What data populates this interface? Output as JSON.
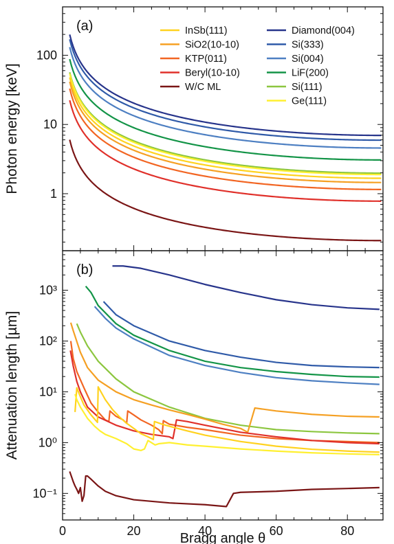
{
  "chart_data": {
    "type": "line",
    "xlabel": "Bragg angle θ",
    "xlim": [
      0,
      90
    ],
    "xticks": [
      "0",
      "20",
      "40",
      "60",
      "80"
    ],
    "legend_placement": "top-right, two columns",
    "legend": [
      {
        "name": "InSb(111)",
        "color": "#ffd21e"
      },
      {
        "name": "SiO2(10-10)",
        "color": "#f5a023"
      },
      {
        "name": "KTP(011)",
        "color": "#f26522"
      },
      {
        "name": "Beryl(10-10)",
        "color": "#e0302a"
      },
      {
        "name": "W/C ML",
        "color": "#7a1515"
      },
      {
        "name": "Diamond(004)",
        "color": "#27348b"
      },
      {
        "name": "Si(333)",
        "color": "#2f5aa8"
      },
      {
        "name": "Si(004)",
        "color": "#4d7fc2"
      },
      {
        "name": "LiF(200)",
        "color": "#139447"
      },
      {
        "name": "Si(111)",
        "color": "#8cc63f"
      },
      {
        "name": "Ge(111)",
        "color": "#fff030"
      }
    ],
    "panels": [
      {
        "label": "(a)",
        "ylabel": "Photon energy [keV]",
        "yscale": "log",
        "ylim": [
          0.15,
          500
        ],
        "ytick_labels": [
          "1",
          "10",
          "100"
        ],
        "series": [
          {
            "name": "Diamond(004)",
            "color": "#27348b",
            "theta_min": 2.0,
            "e_at_90deg": 6.95
          },
          {
            "name": "Si(333)",
            "color": "#2f5aa8",
            "theta_min": 2.0,
            "e_at_90deg": 5.93
          },
          {
            "name": "Si(004)",
            "color": "#4d7fc2",
            "theta_min": 2.0,
            "e_at_90deg": 4.57
          },
          {
            "name": "LiF(200)",
            "color": "#139447",
            "theta_min": 2.0,
            "e_at_90deg": 3.07
          },
          {
            "name": "Si(111)",
            "color": "#8cc63f",
            "theta_min": 2.0,
            "e_at_90deg": 1.98
          },
          {
            "name": "Ge(111)",
            "color": "#fff030",
            "theta_min": 2.0,
            "e_at_90deg": 1.89
          },
          {
            "name": "InSb(111)",
            "color": "#ffd21e",
            "theta_min": 2.0,
            "e_at_90deg": 1.67
          },
          {
            "name": "SiO2(10-10)",
            "color": "#f5a023",
            "theta_min": 2.0,
            "e_at_90deg": 1.45
          },
          {
            "name": "KTP(011)",
            "color": "#f26522",
            "theta_min": 2.0,
            "e_at_90deg": 1.15
          },
          {
            "name": "Beryl(10-10)",
            "color": "#e0302a",
            "theta_min": 2.0,
            "e_at_90deg": 0.78
          },
          {
            "name": "W/C ML",
            "color": "#7a1515",
            "theta_min": 2.0,
            "e_at_90deg": 0.21
          }
        ]
      },
      {
        "label": "(b)",
        "ylabel": "Attenuation length [µm]",
        "yscale": "log",
        "ylim": [
          0.03,
          6000
        ],
        "ytick_labels": [
          "10⁻¹",
          "10⁰",
          "10¹",
          "10²",
          "10³"
        ],
        "series": [
          {
            "name": "Diamond(004)",
            "color": "#27348b",
            "points": [
              [
                14,
                3000
              ],
              [
                17,
                3000
              ],
              [
                22,
                2700
              ],
              [
                30,
                2000
              ],
              [
                40,
                1300
              ],
              [
                50,
                900
              ],
              [
                60,
                650
              ],
              [
                70,
                520
              ],
              [
                80,
                450
              ],
              [
                89,
                420
              ]
            ]
          },
          {
            "name": "Si(333)",
            "color": "#2f5aa8",
            "points": [
              [
                11.5,
                600
              ],
              [
                15,
                330
              ],
              [
                20,
                200
              ],
              [
                30,
                100
              ],
              [
                40,
                65
              ],
              [
                50,
                48
              ],
              [
                60,
                38
              ],
              [
                70,
                33
              ],
              [
                80,
                31
              ],
              [
                89,
                30
              ]
            ]
          },
          {
            "name": "Si(004)",
            "color": "#4d7fc2",
            "points": [
              [
                9,
                480
              ],
              [
                12,
                280
              ],
              [
                15,
                180
              ],
              [
                20,
                110
              ],
              [
                30,
                52
              ],
              [
                40,
                33
              ],
              [
                50,
                24
              ],
              [
                60,
                19
              ],
              [
                70,
                16.5
              ],
              [
                80,
                15
              ],
              [
                89,
                14
              ]
            ]
          },
          {
            "name": "LiF(200)",
            "color": "#139447",
            "points": [
              [
                6.5,
                1200
              ],
              [
                8,
                900
              ],
              [
                10,
                500
              ],
              [
                15,
                220
              ],
              [
                20,
                130
              ],
              [
                30,
                65
              ],
              [
                40,
                40
              ],
              [
                50,
                30
              ],
              [
                60,
                25
              ],
              [
                70,
                22
              ],
              [
                80,
                20
              ],
              [
                89,
                19.5
              ]
            ]
          },
          {
            "name": "Si(111)",
            "color": "#8cc63f",
            "points": [
              [
                4,
                220
              ],
              [
                5,
                150
              ],
              [
                7,
                80
              ],
              [
                10,
                40
              ],
              [
                15,
                18
              ],
              [
                20,
                10
              ],
              [
                30,
                5
              ],
              [
                40,
                3
              ],
              [
                50,
                2.2
              ],
              [
                60,
                1.8
              ],
              [
                70,
                1.65
              ],
              [
                80,
                1.55
              ],
              [
                89,
                1.5
              ]
            ]
          },
          {
            "name": "SiO2(10-10)",
            "color": "#f5a023",
            "points": [
              [
                2.3,
                230
              ],
              [
                3,
                160
              ],
              [
                5,
                60
              ],
              [
                7,
                30
              ],
              [
                10,
                17
              ],
              [
                15,
                10
              ],
              [
                20,
                7
              ],
              [
                25,
                5.5
              ],
              [
                30,
                4.4
              ],
              [
                35,
                3.6
              ],
              [
                40,
                2.9
              ],
              [
                45,
                2.3
              ],
              [
                50,
                1.9
              ],
              [
                52,
                1.6
              ],
              [
                54,
                4.8
              ],
              [
                60,
                4.2
              ],
              [
                70,
                3.6
              ],
              [
                80,
                3.3
              ],
              [
                89,
                3.2
              ]
            ]
          },
          {
            "name": "KTP(011)",
            "color": "#f26522",
            "points": [
              [
                2.3,
                100
              ],
              [
                3,
                45
              ],
              [
                4,
                25
              ],
              [
                6,
                12
              ],
              [
                8,
                6
              ],
              [
                9.5,
                4.4
              ],
              [
                10,
                4
              ],
              [
                12,
                2.8
              ],
              [
                13,
                2.6
              ],
              [
                13.3,
                4.2
              ],
              [
                15,
                3.3
              ],
              [
                17,
                2.8
              ],
              [
                18,
                2.4
              ],
              [
                18.3,
                4.2
              ],
              [
                20,
                3.5
              ],
              [
                22,
                2.8
              ],
              [
                25,
                2.2
              ],
              [
                27,
                1.8
              ],
              [
                28,
                1.5
              ],
              [
                28.3,
                2.7
              ],
              [
                30,
                2.3
              ],
              [
                35,
                2.0
              ],
              [
                40,
                1.8
              ],
              [
                50,
                1.4
              ],
              [
                60,
                1.2
              ],
              [
                70,
                1.1
              ],
              [
                80,
                1.05
              ],
              [
                89,
                1.0
              ]
            ]
          },
          {
            "name": "Beryl(10-10)",
            "color": "#e0302a",
            "points": [
              [
                2.2,
                65
              ],
              [
                3,
                32
              ],
              [
                4,
                16
              ],
              [
                5,
                10
              ],
              [
                7,
                5
              ],
              [
                10,
                3.2
              ],
              [
                15,
                2.2
              ],
              [
                20,
                1.7
              ],
              [
                25,
                1.45
              ],
              [
                30,
                1.3
              ],
              [
                31,
                1.2
              ],
              [
                32,
                2.8
              ],
              [
                35,
                2.6
              ],
              [
                40,
                2.2
              ],
              [
                50,
                1.6
              ],
              [
                60,
                1.3
              ],
              [
                70,
                1.1
              ],
              [
                80,
                1.0
              ],
              [
                89,
                0.95
              ]
            ]
          },
          {
            "name": "InSb(111)",
            "color": "#ffd21e",
            "points": [
              [
                3.5,
                4
              ],
              [
                4,
                12
              ],
              [
                5,
                8
              ],
              [
                6,
                5.5
              ],
              [
                8,
                3.5
              ],
              [
                9.8,
                2.5
              ],
              [
                10,
                12.5
              ],
              [
                12,
                7
              ],
              [
                14,
                4.5
              ],
              [
                16,
                3.2
              ],
              [
                18,
                2.4
              ],
              [
                20,
                1.9
              ],
              [
                22,
                1.5
              ],
              [
                24,
                1.3
              ],
              [
                25.5,
                1.15
              ],
              [
                25.8,
                2.6
              ],
              [
                28,
                2.3
              ],
              [
                30,
                2.1
              ],
              [
                35,
                1.7
              ],
              [
                40,
                1.4
              ],
              [
                50,
                1.05
              ],
              [
                60,
                0.85
              ],
              [
                70,
                0.74
              ],
              [
                80,
                0.68
              ],
              [
                89,
                0.65
              ]
            ]
          },
          {
            "name": "Ge(111)",
            "color": "#fff030",
            "points": [
              [
                3.5,
                9
              ],
              [
                4,
                7
              ],
              [
                5,
                5
              ],
              [
                7,
                3
              ],
              [
                9,
                2.1
              ],
              [
                10.5,
                1.7
              ],
              [
                12,
                1.45
              ],
              [
                15,
                1.2
              ],
              [
                18,
                0.95
              ],
              [
                20,
                0.75
              ],
              [
                22,
                0.7
              ],
              [
                23,
                0.75
              ],
              [
                24,
                1.1
              ],
              [
                26,
                0.9
              ],
              [
                27,
                0.95
              ],
              [
                30,
                1.0
              ],
              [
                35,
                0.9
              ],
              [
                40,
                0.85
              ],
              [
                50,
                0.75
              ],
              [
                60,
                0.68
              ],
              [
                70,
                0.63
              ],
              [
                80,
                0.6
              ],
              [
                89,
                0.58
              ]
            ]
          },
          {
            "name": "W/C ML",
            "color": "#7a1515",
            "points": [
              [
                2,
                0.27
              ],
              [
                3,
                0.17
              ],
              [
                3.5,
                0.14
              ],
              [
                4,
                0.12
              ],
              [
                4.5,
                0.1
              ],
              [
                5,
                0.13
              ],
              [
                5.5,
                0.07
              ],
              [
                6,
                0.09
              ],
              [
                6.5,
                0.22
              ],
              [
                7,
                0.22
              ],
              [
                8,
                0.19
              ],
              [
                10,
                0.14
              ],
              [
                12,
                0.11
              ],
              [
                15,
                0.09
              ],
              [
                20,
                0.075
              ],
              [
                30,
                0.065
              ],
              [
                40,
                0.06
              ],
              [
                46,
                0.055
              ],
              [
                48,
                0.1
              ],
              [
                50,
                0.105
              ],
              [
                60,
                0.11
              ],
              [
                70,
                0.12
              ],
              [
                80,
                0.125
              ],
              [
                89,
                0.13
              ]
            ]
          }
        ]
      }
    ]
  }
}
